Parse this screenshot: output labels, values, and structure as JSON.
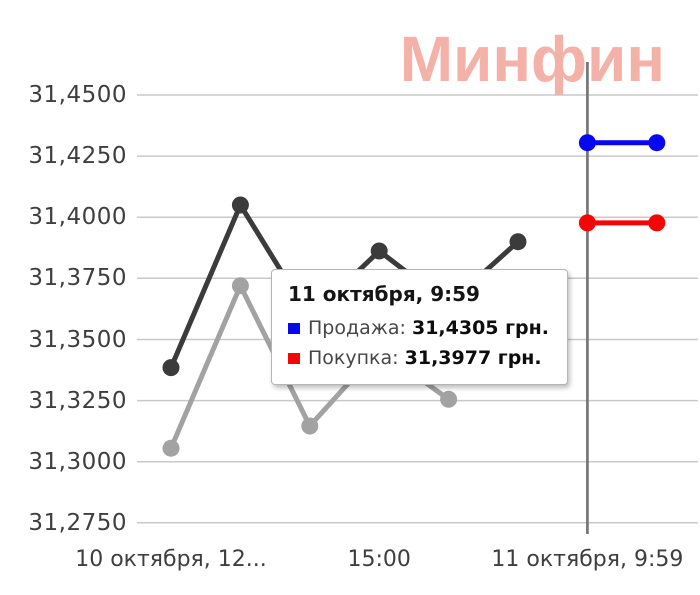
{
  "watermark": {
    "text": "Минфин",
    "color": "#f2aba1"
  },
  "tooltip": {
    "title": "11 октября, 9:59",
    "rows": [
      {
        "marker_color": "#0707f0",
        "label": "Продажа:",
        "value": "31,4305 грн."
      },
      {
        "marker_color": "#f50505",
        "label": "Покупка:",
        "value": "31,3977 грн."
      }
    ]
  },
  "chart_data": {
    "type": "line",
    "title": "",
    "xlabel": "",
    "ylabel": "",
    "grid": true,
    "legend": "none",
    "y_axis": {
      "min": 31.275,
      "max": 31.45,
      "tick_step": 0.025,
      "tick_labels": [
        "31,4500",
        "31,4250",
        "31,4000",
        "31,3750",
        "31,3500",
        "31,3250",
        "31,3000",
        "31,2750"
      ]
    },
    "x_axis": {
      "ticks": [
        {
          "slot": 0,
          "label": "10 октября, 12..."
        },
        {
          "slot": 3,
          "label": "15:00"
        },
        {
          "slot": 6,
          "label": "11 октября, 9:59"
        }
      ]
    },
    "crosshair": {
      "slot": 6,
      "color": "#757575",
      "label": "11 октября, 9:59"
    },
    "series": [
      {
        "id": "history-dark",
        "color": "#3b3b3b",
        "points": [
          [
            0,
            31.3385
          ],
          [
            1,
            31.405
          ],
          [
            2,
            31.359
          ],
          [
            3,
            31.3862
          ],
          [
            4,
            31.3645
          ],
          [
            5,
            31.39
          ]
        ]
      },
      {
        "id": "history-light",
        "color": "#a2a2a2",
        "points": [
          [
            0,
            31.3055
          ],
          [
            1,
            31.372
          ],
          [
            2,
            31.3146
          ],
          [
            3,
            31.346
          ],
          [
            4,
            31.3255
          ]
        ]
      },
      {
        "id": "sell-current",
        "color": "#0707f0",
        "tooltip_label": "Продажа",
        "value": 31.4305,
        "points": [
          [
            6,
            31.4305
          ],
          [
            7,
            31.4305
          ]
        ]
      },
      {
        "id": "buy-current",
        "color": "#f50505",
        "tooltip_label": "Покупка",
        "value": 31.3977,
        "points": [
          [
            6,
            31.3977
          ],
          [
            7,
            31.3977
          ]
        ]
      }
    ]
  }
}
